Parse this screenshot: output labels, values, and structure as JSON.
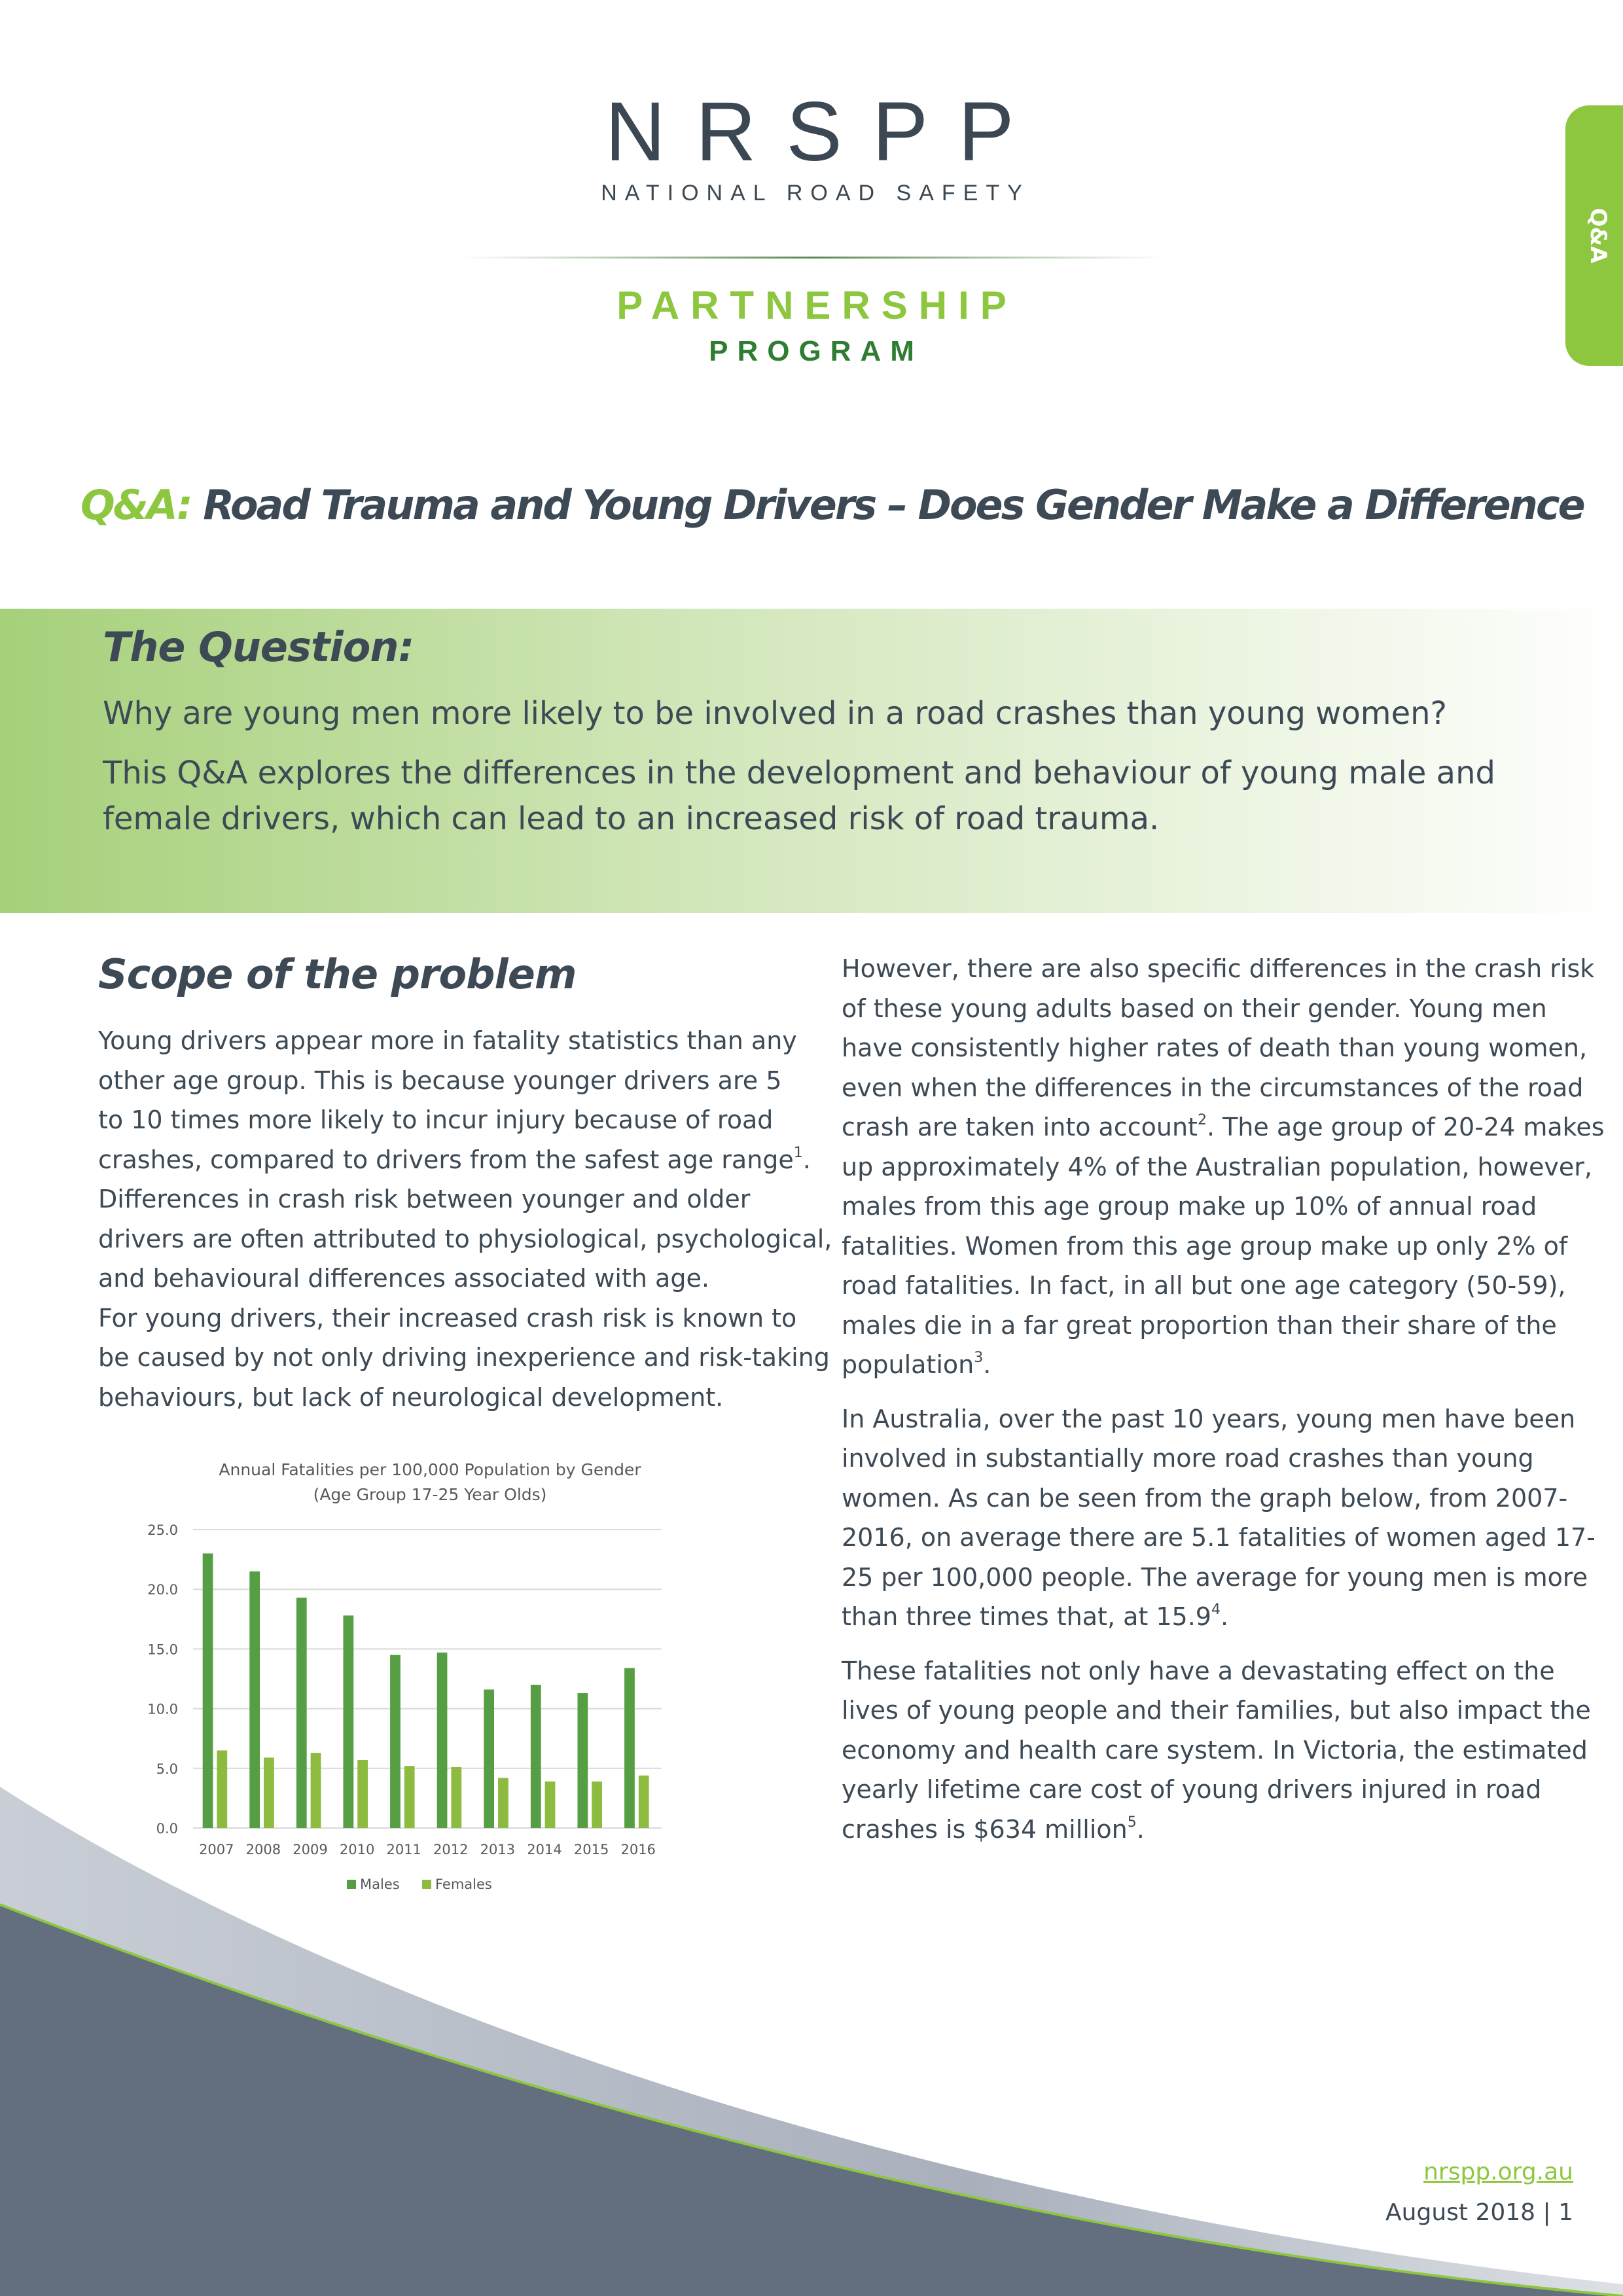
{
  "logo": {
    "main": "NRSPP",
    "sub": "NATIONAL ROAD SAFETY",
    "partnership": "PARTNERSHIP",
    "program": "PROGRAM"
  },
  "tab": {
    "label": "Q&A"
  },
  "title": {
    "prefix": "Q&A:",
    "text": " Road Trauma and Young Drivers – Does Gender Make a Difference"
  },
  "question": {
    "heading": "The Question:",
    "lines": [
      "Why are young men more likely to be involved in a road crashes than young women?",
      "This Q&A explores the differences in the development and behaviour of young male and",
      "female drivers, which can lead to an increased risk of road trauma."
    ]
  },
  "scope": {
    "heading": "Scope of the problem",
    "paragraphs": [
      [
        {
          "t": "Young drivers appear more in fatality statistics than any"
        },
        {
          "t": "other age group. This is because younger drivers are 5"
        },
        {
          "t": "to 10 times more likely to incur injury because of road"
        },
        {
          "t": "crashes, compared to drivers from the safest age range",
          "sup": "1",
          "after": "."
        },
        {
          "t": "Differences in crash risk between younger and older"
        },
        {
          "t": "drivers are often attributed to physiological, psychological,"
        },
        {
          "t": "and behavioural differences associated with age."
        },
        {
          "t": "For young drivers, their increased crash risk is known to"
        },
        {
          "t": "be caused by not only driving inexperience and risk-taking"
        },
        {
          "t": "behaviours, but lack of neurological development."
        }
      ]
    ]
  },
  "right": {
    "paragraphs": [
      [
        {
          "t": "However, there are also specific differences in the crash risk"
        },
        {
          "t": "of these young adults based on their gender. Young men"
        },
        {
          "t": "have consistently higher rates of death than young women,"
        },
        {
          "t": "even when the differences in the circumstances of the road"
        },
        {
          "t": "crash are taken into account",
          "sup": "2",
          "after": ". The age group of 20-24 makes"
        },
        {
          "t": "up approximately 4% of the Australian population, however,"
        },
        {
          "t": "males from this age group make up 10% of annual road"
        },
        {
          "t": "fatalities. Women from this age group make up only 2% of"
        },
        {
          "t": "road fatalities. In fact, in all but one age category (50-59),"
        },
        {
          "t": "males die in a far great proportion than their share of the"
        },
        {
          "t": "population",
          "sup": "3",
          "after": "."
        }
      ],
      [
        {
          "t": "In Australia, over the past 10 years, young men have been"
        },
        {
          "t": "involved in substantially more road crashes than young"
        },
        {
          "t": "women. As can be seen from the graph below, from 2007-"
        },
        {
          "t": "2016, on average there are 5.1 fatalities of women aged 17-"
        },
        {
          "t": "25 per 100,000 people. The average for young men is more"
        },
        {
          "t": "than three times that, at 15.9",
          "sup": "4",
          "after": "."
        }
      ],
      [
        {
          "t": "These fatalities not only have a devastating effect on the"
        },
        {
          "t": "lives of young people and their families, but also impact the"
        },
        {
          "t": "economy and health care system. In Victoria, the estimated"
        },
        {
          "t": "yearly lifetime care cost of young drivers injured in road"
        },
        {
          "t": "crashes is $634 million",
          "sup": "5",
          "after": "."
        }
      ]
    ]
  },
  "chart_data": {
    "type": "bar",
    "title": "Annual Fatalities per 100,000 Population by Gender",
    "subtitle": "(Age Group  17-25 Year Olds)",
    "categories": [
      "2007",
      "2008",
      "2009",
      "2010",
      "2011",
      "2012",
      "2013",
      "2014",
      "2015",
      "2016"
    ],
    "series": [
      {
        "name": "Males",
        "color": "#559e43",
        "values": [
          23.0,
          21.5,
          19.3,
          17.8,
          14.5,
          14.7,
          11.6,
          12.0,
          11.3,
          13.4
        ]
      },
      {
        "name": "Females",
        "color": "#8dbb3f",
        "values": [
          6.5,
          5.9,
          6.3,
          5.7,
          5.2,
          5.1,
          4.2,
          3.9,
          3.9,
          4.4
        ]
      }
    ],
    "yticks": [
      "0.0",
      "5.0",
      "10.0",
      "15.0",
      "20.0",
      "25.0"
    ],
    "ylim": [
      0,
      25
    ],
    "grid": true,
    "legend": "bottom"
  },
  "footer": {
    "link": "nrspp.org.au",
    "date": "August 2018 | 1"
  },
  "colors": {
    "accent": "#8dc63f",
    "dark_green": "#2e7d32",
    "text": "#3d4a55",
    "footer_slate": "#636e7e"
  }
}
